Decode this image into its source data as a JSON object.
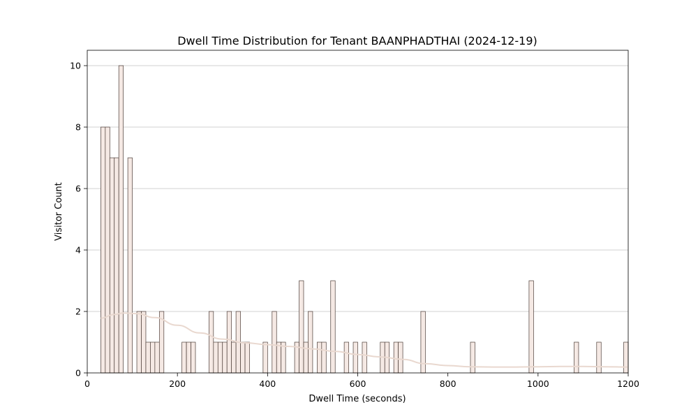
{
  "chart_data": {
    "type": "bar",
    "subtype": "histogram",
    "title": "Dwell Time Distribution for Tenant BAANPHADTHAI (2024-12-19)",
    "xlabel": "Dwell Time (seconds)",
    "ylabel": "Visitor Count",
    "xlim": [
      0,
      1200
    ],
    "ylim": [
      0,
      10.5
    ],
    "xticks": [
      0,
      200,
      400,
      600,
      800,
      1000,
      1200
    ],
    "yticks": [
      0,
      2,
      4,
      6,
      8,
      10
    ],
    "grid": "y",
    "bin_width": 10,
    "bars_color": "#f5e9e4",
    "edge_color": "#4a3b36",
    "kde_color": "#e9d8cf",
    "bins": [
      {
        "x": 30,
        "count": 8
      },
      {
        "x": 40,
        "count": 8
      },
      {
        "x": 50,
        "count": 7
      },
      {
        "x": 60,
        "count": 7
      },
      {
        "x": 70,
        "count": 10
      },
      {
        "x": 90,
        "count": 7
      },
      {
        "x": 110,
        "count": 2
      },
      {
        "x": 120,
        "count": 2
      },
      {
        "x": 130,
        "count": 1
      },
      {
        "x": 140,
        "count": 1
      },
      {
        "x": 150,
        "count": 1
      },
      {
        "x": 160,
        "count": 2
      },
      {
        "x": 210,
        "count": 1
      },
      {
        "x": 220,
        "count": 1
      },
      {
        "x": 230,
        "count": 1
      },
      {
        "x": 270,
        "count": 2
      },
      {
        "x": 280,
        "count": 1
      },
      {
        "x": 290,
        "count": 1
      },
      {
        "x": 300,
        "count": 1
      },
      {
        "x": 310,
        "count": 2
      },
      {
        "x": 320,
        "count": 1
      },
      {
        "x": 330,
        "count": 2
      },
      {
        "x": 340,
        "count": 1
      },
      {
        "x": 350,
        "count": 1
      },
      {
        "x": 390,
        "count": 1
      },
      {
        "x": 410,
        "count": 2
      },
      {
        "x": 420,
        "count": 1
      },
      {
        "x": 430,
        "count": 1
      },
      {
        "x": 460,
        "count": 1
      },
      {
        "x": 470,
        "count": 3
      },
      {
        "x": 480,
        "count": 1
      },
      {
        "x": 490,
        "count": 2
      },
      {
        "x": 510,
        "count": 1
      },
      {
        "x": 520,
        "count": 1
      },
      {
        "x": 540,
        "count": 3
      },
      {
        "x": 570,
        "count": 1
      },
      {
        "x": 590,
        "count": 1
      },
      {
        "x": 610,
        "count": 1
      },
      {
        "x": 650,
        "count": 1
      },
      {
        "x": 660,
        "count": 1
      },
      {
        "x": 680,
        "count": 1
      },
      {
        "x": 690,
        "count": 1
      },
      {
        "x": 740,
        "count": 2
      },
      {
        "x": 850,
        "count": 1
      },
      {
        "x": 980,
        "count": 3
      },
      {
        "x": 1080,
        "count": 1
      },
      {
        "x": 1130,
        "count": 1
      },
      {
        "x": 1190,
        "count": 1
      }
    ],
    "kde_points": [
      [
        30,
        1.78
      ],
      [
        60,
        1.9
      ],
      [
        80,
        1.95
      ],
      [
        110,
        1.93
      ],
      [
        150,
        1.8
      ],
      [
        200,
        1.55
      ],
      [
        250,
        1.3
      ],
      [
        300,
        1.1
      ],
      [
        350,
        0.98
      ],
      [
        400,
        0.92
      ],
      [
        450,
        0.86
      ],
      [
        500,
        0.78
      ],
      [
        550,
        0.7
      ],
      [
        600,
        0.6
      ],
      [
        650,
        0.52
      ],
      [
        700,
        0.44
      ],
      [
        750,
        0.3
      ],
      [
        800,
        0.24
      ],
      [
        850,
        0.2
      ],
      [
        900,
        0.19
      ],
      [
        950,
        0.19
      ],
      [
        1000,
        0.2
      ],
      [
        1050,
        0.21
      ],
      [
        1100,
        0.21
      ],
      [
        1150,
        0.2
      ],
      [
        1200,
        0.19
      ]
    ]
  }
}
